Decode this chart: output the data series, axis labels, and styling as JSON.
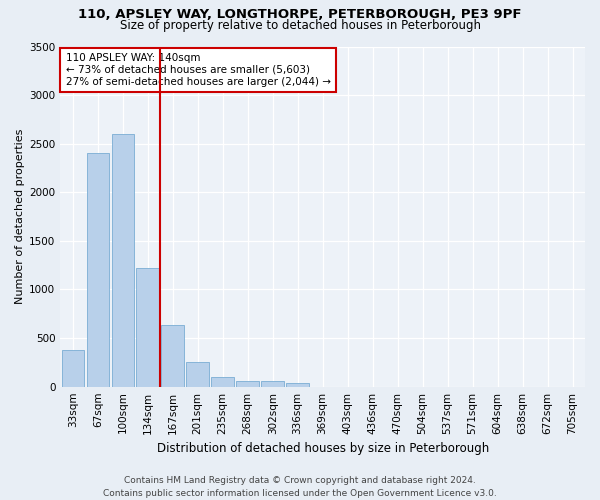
{
  "title1": "110, APSLEY WAY, LONGTHORPE, PETERBOROUGH, PE3 9PF",
  "title2": "Size of property relative to detached houses in Peterborough",
  "xlabel": "Distribution of detached houses by size in Peterborough",
  "ylabel": "Number of detached properties",
  "footnote": "Contains HM Land Registry data © Crown copyright and database right 2024.\nContains public sector information licensed under the Open Government Licence v3.0.",
  "categories": [
    "33sqm",
    "67sqm",
    "100sqm",
    "134sqm",
    "167sqm",
    "201sqm",
    "235sqm",
    "268sqm",
    "302sqm",
    "336sqm",
    "369sqm",
    "403sqm",
    "436sqm",
    "470sqm",
    "504sqm",
    "537sqm",
    "571sqm",
    "604sqm",
    "638sqm",
    "672sqm",
    "705sqm"
  ],
  "values": [
    380,
    2400,
    2600,
    1220,
    630,
    250,
    100,
    60,
    55,
    35,
    0,
    0,
    0,
    0,
    0,
    0,
    0,
    0,
    0,
    0,
    0
  ],
  "bar_color": "#b8d0ea",
  "bar_edge_color": "#7aadd4",
  "red_line_x": 3.5,
  "red_line_label": "110 APSLEY WAY: 140sqm",
  "annotation_line1": "← 73% of detached houses are smaller (5,603)",
  "annotation_line2": "27% of semi-detached houses are larger (2,044) →",
  "ylim": [
    0,
    3500
  ],
  "yticks": [
    0,
    500,
    1000,
    1500,
    2000,
    2500,
    3000,
    3500
  ],
  "bg_color": "#e8eef5",
  "plot_bg_color": "#edf2f8",
  "grid_color": "#ffffff",
  "annotation_box_facecolor": "#ffffff",
  "annotation_box_edgecolor": "#cc0000",
  "red_line_color": "#cc0000",
  "title1_fontsize": 9.5,
  "title2_fontsize": 8.5,
  "ylabel_fontsize": 8,
  "xlabel_fontsize": 8.5,
  "tick_fontsize": 7.5,
  "annot_fontsize": 7.5,
  "footnote_fontsize": 6.5
}
